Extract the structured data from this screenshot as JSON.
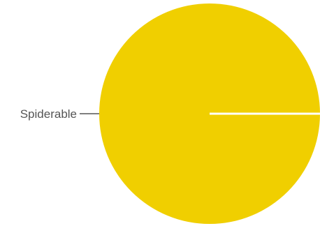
{
  "chart_data": {
    "type": "pie",
    "title": "",
    "slices": [
      {
        "label": "Spiderable",
        "value": 100,
        "color": "#f0cf00"
      }
    ],
    "separator_color": "#ffffff",
    "label_line_color": "#555555",
    "legend": "none"
  }
}
